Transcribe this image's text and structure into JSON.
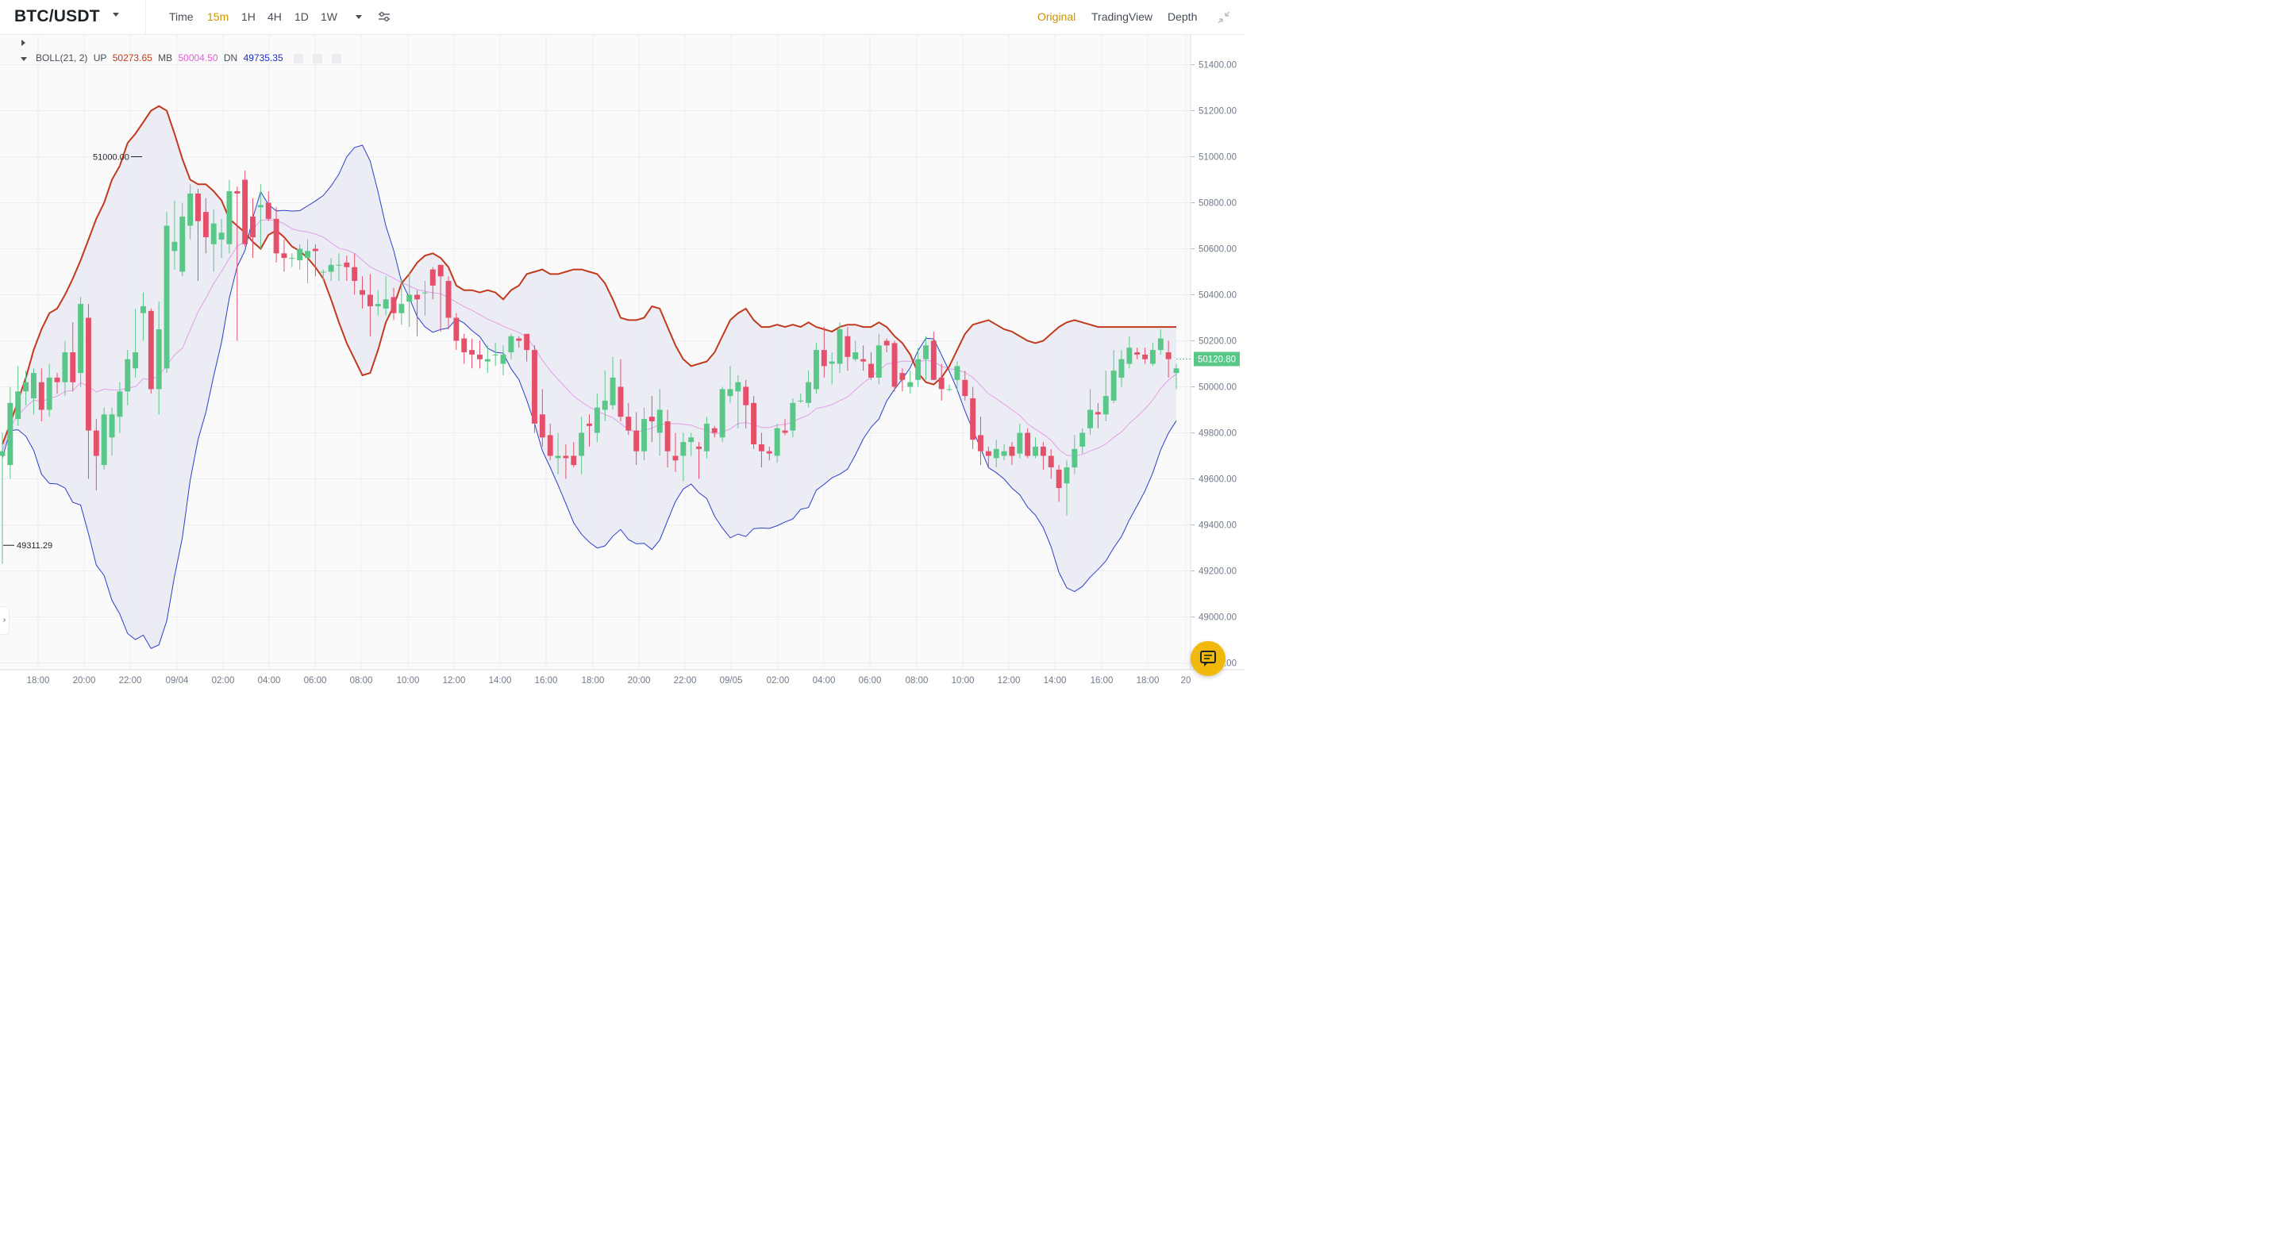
{
  "header": {
    "pair": "BTC/USDT",
    "timeframes": [
      "Time",
      "15m",
      "1H",
      "4H",
      "1D",
      "1W"
    ],
    "active_timeframe": "15m",
    "views": [
      "Original",
      "TradingView",
      "Depth"
    ],
    "active_view": "Original"
  },
  "indicator": {
    "name": "BOLL(21, 2)",
    "up_label": "UP",
    "up_value": "50273.65",
    "mb_label": "MB",
    "mb_value": "50004.50",
    "dn_label": "DN",
    "dn_value": "49735.35"
  },
  "colors": {
    "up_candle": "#58c788",
    "down_candle": "#e4506a",
    "upper_band": "#c23a1d",
    "middle_band": "#e2a0e6",
    "lower_band": "#2b3fc8",
    "band_fill": "#e9eaf3",
    "price_tag": "#58c788",
    "accent": "#c99400"
  },
  "chart_data": {
    "type": "candlestick",
    "yaxis": {
      "ticks": [
        "51400.00",
        "51200.00",
        "51000.00",
        "50800.00",
        "50600.00",
        "50400.00",
        "50200.00",
        "50000.00",
        "49800.00",
        "49600.00",
        "49400.00",
        "49200.00",
        "49000.00",
        "48800.00"
      ]
    },
    "xaxis": {
      "ticks": [
        "18:00",
        "20:00",
        "22:00",
        "09/04",
        "02:00",
        "04:00",
        "06:00",
        "08:00",
        "10:00",
        "12:00",
        "14:00",
        "16:00",
        "18:00",
        "20:00",
        "22:00",
        "09/05",
        "02:00",
        "04:00",
        "06:00",
        "08:00",
        "10:00",
        "12:00",
        "14:00",
        "16:00",
        "18:00",
        "20"
      ]
    },
    "last_price": "50120.80",
    "annotations": {
      "high_label": "51000.00",
      "low_label": "49311.29"
    },
    "candles": [
      [
        49700,
        49720,
        49230,
        49800
      ],
      [
        49660,
        49930,
        49600,
        50000
      ],
      [
        49860,
        49980,
        49830,
        50090
      ],
      [
        49980,
        50020,
        49920,
        50070
      ],
      [
        49950,
        50060,
        49880,
        50080
      ],
      [
        50020,
        49900,
        49850,
        50080
      ],
      [
        49900,
        50040,
        49870,
        50100
      ],
      [
        50040,
        50020,
        49970,
        50060
      ],
      [
        50020,
        50150,
        49960,
        50200
      ],
      [
        50150,
        50020,
        49980,
        50280
      ],
      [
        50060,
        50360,
        50000,
        50390
      ],
      [
        50300,
        49810,
        49600,
        50360
      ],
      [
        49810,
        49700,
        49550,
        49860
      ],
      [
        49660,
        49880,
        49640,
        49910
      ],
      [
        49780,
        49880,
        49700,
        49910
      ],
      [
        49870,
        49980,
        49800,
        50020
      ],
      [
        49980,
        50120,
        49920,
        50160
      ],
      [
        50080,
        50150,
        50040,
        50340
      ],
      [
        50320,
        50350,
        50200,
        50410
      ],
      [
        50330,
        49990,
        49970,
        50340
      ],
      [
        49990,
        50250,
        49880,
        50370
      ],
      [
        50080,
        50700,
        50060,
        50760
      ],
      [
        50590,
        50630,
        50510,
        50810
      ],
      [
        50500,
        50740,
        50480,
        50800
      ],
      [
        50700,
        50840,
        50640,
        50880
      ],
      [
        50840,
        50720,
        50460,
        50860
      ],
      [
        50760,
        50650,
        50580,
        50820
      ],
      [
        50620,
        50710,
        50500,
        50770
      ],
      [
        50640,
        50670,
        50560,
        50730
      ],
      [
        50620,
        50850,
        50580,
        50900
      ],
      [
        50850,
        50840,
        50200,
        50870
      ],
      [
        50900,
        50620,
        50610,
        50940
      ],
      [
        50740,
        50650,
        50560,
        50820
      ],
      [
        50780,
        50790,
        50600,
        50880
      ],
      [
        50800,
        50730,
        50720,
        50850
      ],
      [
        50730,
        50580,
        50540,
        50780
      ],
      [
        50580,
        50560,
        50500,
        50640
      ],
      [
        50560,
        50560,
        50520,
        50580
      ],
      [
        50550,
        50600,
        50510,
        50620
      ],
      [
        50560,
        50590,
        50450,
        50640
      ],
      [
        50600,
        50590,
        50480,
        50620
      ],
      [
        50500,
        50500,
        50460,
        50510
      ],
      [
        50500,
        50530,
        50460,
        50560
      ],
      [
        50530,
        50530,
        50460,
        50580
      ],
      [
        50540,
        50520,
        50460,
        50570
      ],
      [
        50520,
        50460,
        50400,
        50580
      ],
      [
        50420,
        50400,
        50340,
        50480
      ],
      [
        50400,
        50350,
        50220,
        50490
      ],
      [
        50350,
        50360,
        50310,
        50420
      ],
      [
        50340,
        50380,
        50310,
        50480
      ],
      [
        50390,
        50320,
        50290,
        50430
      ],
      [
        50320,
        50360,
        50270,
        50470
      ],
      [
        50370,
        50400,
        50260,
        50500
      ],
      [
        50400,
        50380,
        50220,
        50420
      ],
      [
        50410,
        50410,
        50310,
        50460
      ],
      [
        50510,
        50440,
        50380,
        50520
      ],
      [
        50530,
        50480,
        50240,
        50530
      ],
      [
        50460,
        50300,
        50250,
        50480
      ],
      [
        50300,
        50200,
        50160,
        50320
      ],
      [
        50210,
        50150,
        50100,
        50230
      ],
      [
        50160,
        50140,
        50080,
        50210
      ],
      [
        50140,
        50120,
        50080,
        50200
      ],
      [
        50110,
        50120,
        50060,
        50180
      ],
      [
        50140,
        50140,
        50090,
        50190
      ],
      [
        50100,
        50140,
        50050,
        50180
      ],
      [
        50150,
        50220,
        50120,
        50230
      ],
      [
        50210,
        50200,
        50170,
        50220
      ],
      [
        50230,
        50160,
        50110,
        50230
      ],
      [
        50160,
        49840,
        49800,
        50180
      ],
      [
        49880,
        49780,
        49740,
        49990
      ],
      [
        49790,
        49700,
        49680,
        49840
      ],
      [
        49690,
        49700,
        49620,
        49800
      ],
      [
        49700,
        49690,
        49600,
        49750
      ],
      [
        49700,
        49660,
        49650,
        49760
      ],
      [
        49700,
        49800,
        49620,
        49870
      ],
      [
        49840,
        49830,
        49740,
        49880
      ],
      [
        49800,
        49910,
        49760,
        49970
      ],
      [
        49900,
        49940,
        49850,
        50070
      ],
      [
        49920,
        50040,
        49900,
        50130
      ],
      [
        50000,
        49870,
        49850,
        50120
      ],
      [
        49870,
        49810,
        49790,
        49930
      ],
      [
        49810,
        49720,
        49660,
        49890
      ],
      [
        49720,
        49860,
        49680,
        49910
      ],
      [
        49870,
        49850,
        49760,
        49960
      ],
      [
        49800,
        49900,
        49700,
        49990
      ],
      [
        49850,
        49720,
        49650,
        49900
      ],
      [
        49700,
        49680,
        49630,
        49800
      ],
      [
        49700,
        49760,
        49590,
        49800
      ],
      [
        49760,
        49780,
        49700,
        49800
      ],
      [
        49740,
        49730,
        49600,
        49760
      ],
      [
        49720,
        49840,
        49690,
        49870
      ],
      [
        49820,
        49800,
        49780,
        49830
      ],
      [
        49780,
        49990,
        49760,
        50000
      ],
      [
        49960,
        49990,
        49930,
        50090
      ],
      [
        49980,
        50020,
        49820,
        50050
      ],
      [
        50000,
        49920,
        49820,
        50030
      ],
      [
        49930,
        49750,
        49730,
        49960
      ],
      [
        49750,
        49720,
        49650,
        49800
      ],
      [
        49720,
        49710,
        49680,
        49740
      ],
      [
        49700,
        49820,
        49670,
        49840
      ],
      [
        49810,
        49800,
        49790,
        49860
      ],
      [
        49810,
        49930,
        49780,
        49950
      ],
      [
        49940,
        49940,
        49930,
        49970
      ],
      [
        49930,
        50020,
        49910,
        50070
      ],
      [
        49990,
        50160,
        49970,
        50190
      ],
      [
        50160,
        50090,
        50040,
        50260
      ],
      [
        50100,
        50110,
        50010,
        50150
      ],
      [
        50100,
        50250,
        50060,
        50280
      ],
      [
        50220,
        50130,
        50070,
        50260
      ],
      [
        50120,
        50150,
        50110,
        50200
      ],
      [
        50120,
        50110,
        50070,
        50180
      ],
      [
        50100,
        50040,
        50030,
        50150
      ],
      [
        50040,
        50180,
        50010,
        50230
      ],
      [
        50200,
        50180,
        50150,
        50210
      ],
      [
        50190,
        50000,
        49980,
        50200
      ],
      [
        50060,
        50030,
        49980,
        50080
      ],
      [
        50000,
        50020,
        49970,
        50070
      ],
      [
        50030,
        50120,
        50000,
        50170
      ],
      [
        50120,
        50180,
        50030,
        50220
      ],
      [
        50200,
        50030,
        50030,
        50240
      ],
      [
        50040,
        49990,
        49940,
        50100
      ],
      [
        49990,
        49990,
        49980,
        50010
      ],
      [
        50030,
        50090,
        49980,
        50110
      ],
      [
        50030,
        49960,
        49940,
        50070
      ],
      [
        49950,
        49770,
        49730,
        50000
      ],
      [
        49790,
        49720,
        49660,
        49870
      ],
      [
        49720,
        49700,
        49650,
        49740
      ],
      [
        49690,
        49730,
        49650,
        49770
      ],
      [
        49700,
        49720,
        49680,
        49750
      ],
      [
        49740,
        49700,
        49660,
        49760
      ],
      [
        49710,
        49800,
        49690,
        49840
      ],
      [
        49800,
        49700,
        49690,
        49820
      ],
      [
        49700,
        49740,
        49690,
        49780
      ],
      [
        49740,
        49700,
        49640,
        49760
      ],
      [
        49700,
        49650,
        49600,
        49730
      ],
      [
        49640,
        49560,
        49500,
        49660
      ],
      [
        49580,
        49650,
        49440,
        49680
      ],
      [
        49650,
        49730,
        49620,
        49790
      ],
      [
        49740,
        49800,
        49710,
        49820
      ],
      [
        49820,
        49900,
        49790,
        49990
      ],
      [
        49890,
        49880,
        49820,
        49930
      ],
      [
        49880,
        49960,
        49850,
        50070
      ],
      [
        49940,
        50070,
        49930,
        50160
      ],
      [
        50040,
        50120,
        50000,
        50160
      ],
      [
        50100,
        50170,
        50080,
        50220
      ],
      [
        50150,
        50140,
        50120,
        50170
      ],
      [
        50140,
        50120,
        50100,
        50170
      ],
      [
        50100,
        50160,
        50090,
        50190
      ],
      [
        50160,
        50210,
        50140,
        50250
      ],
      [
        50150,
        50120,
        50040,
        50200
      ],
      [
        50060,
        50080,
        49990,
        50100
      ]
    ],
    "bollinger": {
      "upper": [
        49750,
        49840,
        49940,
        50040,
        50160,
        50250,
        50320,
        50340,
        50400,
        50470,
        50550,
        50640,
        50730,
        50800,
        50900,
        50960,
        51060,
        51100,
        51150,
        51200,
        51220,
        51200,
        51100,
        50990,
        50900,
        50880,
        50880,
        50850,
        50810,
        50730,
        50700,
        50670,
        50630,
        50600,
        50660,
        50680,
        50650,
        50610,
        50590,
        50560,
        50520,
        50470,
        50380,
        50280,
        50190,
        50120,
        50050,
        50060,
        50160,
        50280,
        50350,
        50450,
        50490,
        50540,
        50570,
        50580,
        50560,
        50520,
        50440,
        50420,
        50420,
        50410,
        50420,
        50410,
        50380,
        50420,
        50440,
        50490,
        50500,
        50510,
        50490,
        50490,
        50500,
        50510,
        50510,
        50500,
        50490,
        50450,
        50380,
        50300,
        50290,
        50290,
        50300,
        50350,
        50340,
        50260,
        50180,
        50120,
        50090,
        50100,
        50110,
        50150,
        50220,
        50290,
        50320,
        50340,
        50290,
        50260,
        50260,
        50270,
        50260,
        50270,
        50260,
        50280,
        50260,
        50250,
        50240,
        50260,
        50270,
        50270,
        50260,
        50260,
        50280,
        50260,
        50220,
        50190,
        50140,
        50060,
        50020,
        50010,
        50040,
        50090,
        50160,
        50230,
        50270,
        50280,
        50290,
        50270,
        50250,
        50240,
        50220,
        50200,
        50190,
        50200,
        50230,
        50260,
        50280,
        50290,
        50280,
        50270,
        50260
      ]
    }
  }
}
